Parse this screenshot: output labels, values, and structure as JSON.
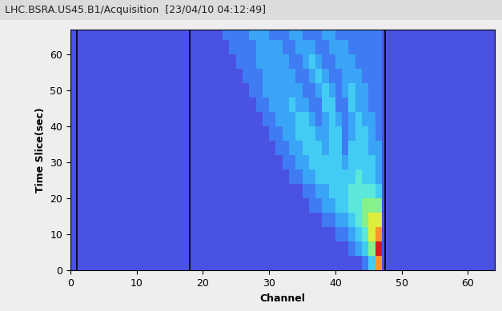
{
  "chart_data": {
    "type": "heatmap",
    "title": "LHC.BSRA.US45.B1/Acquisition  [23/04/10 04:12:49]",
    "x_label": "Channel",
    "y_label": "Time Slice(sec)",
    "xlim": [
      0,
      64
    ],
    "ylim": [
      0,
      67
    ],
    "xticks": [
      0,
      10,
      20,
      30,
      40,
      50,
      60
    ],
    "yticks": [
      0,
      10,
      20,
      30,
      40,
      50,
      60
    ],
    "x_edges": [
      0,
      1,
      2,
      3,
      4,
      5,
      6,
      7,
      8,
      9,
      10,
      11,
      12,
      13,
      14,
      15,
      16,
      17,
      18,
      19,
      20,
      21,
      22,
      23,
      24,
      25,
      26,
      27,
      28,
      29,
      30,
      31,
      32,
      33,
      34,
      35,
      36,
      37,
      38,
      39,
      40,
      41,
      42,
      43,
      44,
      45,
      46,
      47,
      48,
      49,
      50,
      51,
      52,
      53,
      54,
      55,
      56,
      57,
      58,
      59,
      60,
      61,
      62,
      63,
      64
    ],
    "y_edges": [
      0,
      4,
      8,
      12,
      16,
      20,
      24,
      28,
      32,
      36,
      40,
      44,
      48,
      52,
      56,
      60,
      64,
      67
    ],
    "color_range": [
      0,
      9
    ],
    "marker_channels": [
      1,
      18,
      47.5
    ],
    "cells": [
      [
        1,
        1,
        1,
        1,
        1,
        1,
        1,
        1,
        1,
        1,
        1,
        1,
        1,
        1,
        1,
        1,
        1,
        1,
        1,
        1,
        1,
        1,
        1,
        1,
        1,
        1,
        1,
        1,
        1,
        1,
        1,
        1,
        1,
        1,
        1,
        1,
        1,
        1,
        1,
        1,
        1,
        1,
        1,
        1,
        2,
        4,
        8,
        1,
        1,
        1,
        1,
        1,
        1,
        1,
        1,
        1,
        1,
        1,
        1,
        1,
        1,
        1,
        1,
        1
      ],
      [
        1,
        1,
        1,
        1,
        1,
        1,
        1,
        1,
        1,
        1,
        1,
        1,
        1,
        1,
        1,
        1,
        1,
        1,
        1,
        1,
        1,
        1,
        1,
        1,
        1,
        1,
        1,
        1,
        1,
        1,
        1,
        1,
        1,
        1,
        1,
        1,
        1,
        1,
        1,
        1,
        1,
        1,
        2,
        3,
        4,
        6,
        9,
        1,
        1,
        1,
        1,
        1,
        1,
        1,
        1,
        1,
        1,
        1,
        1,
        1,
        1,
        1,
        1,
        1
      ],
      [
        1,
        1,
        1,
        1,
        1,
        1,
        1,
        1,
        1,
        1,
        1,
        1,
        1,
        1,
        1,
        1,
        1,
        1,
        1,
        1,
        1,
        1,
        1,
        1,
        1,
        1,
        1,
        1,
        1,
        1,
        1,
        1,
        1,
        1,
        1,
        1,
        1,
        1,
        1,
        1,
        2,
        2,
        3,
        4,
        5,
        7,
        8,
        1,
        1,
        1,
        1,
        1,
        1,
        1,
        1,
        1,
        1,
        1,
        1,
        1,
        1,
        1,
        1,
        1
      ],
      [
        1,
        1,
        1,
        1,
        1,
        1,
        1,
        1,
        1,
        1,
        1,
        1,
        1,
        1,
        1,
        1,
        1,
        1,
        1,
        1,
        1,
        1,
        1,
        1,
        1,
        1,
        1,
        1,
        1,
        1,
        1,
        1,
        1,
        1,
        1,
        1,
        1,
        1,
        2,
        2,
        3,
        3,
        4,
        5,
        6,
        7,
        7,
        1,
        1,
        1,
        1,
        1,
        1,
        1,
        1,
        1,
        1,
        1,
        1,
        1,
        1,
        1,
        1,
        1
      ],
      [
        1,
        1,
        1,
        1,
        1,
        1,
        1,
        1,
        1,
        1,
        1,
        1,
        1,
        1,
        1,
        1,
        1,
        1,
        1,
        1,
        1,
        1,
        1,
        1,
        1,
        1,
        1,
        1,
        1,
        1,
        1,
        1,
        1,
        1,
        1,
        1,
        2,
        2,
        3,
        3,
        4,
        4,
        5,
        5,
        6,
        6,
        6,
        1,
        1,
        1,
        1,
        1,
        1,
        1,
        1,
        1,
        1,
        1,
        1,
        1,
        1,
        1,
        1,
        1
      ],
      [
        1,
        1,
        1,
        1,
        1,
        1,
        1,
        1,
        1,
        1,
        1,
        1,
        1,
        1,
        1,
        1,
        1,
        1,
        1,
        1,
        1,
        1,
        1,
        1,
        1,
        1,
        1,
        1,
        1,
        1,
        1,
        1,
        1,
        1,
        1,
        2,
        2,
        3,
        3,
        4,
        4,
        4,
        5,
        5,
        5,
        5,
        4,
        1,
        1,
        1,
        1,
        1,
        1,
        1,
        1,
        1,
        1,
        1,
        1,
        1,
        1,
        1,
        1,
        1
      ],
      [
        1,
        1,
        1,
        1,
        1,
        1,
        1,
        1,
        1,
        1,
        1,
        1,
        1,
        1,
        1,
        1,
        1,
        1,
        1,
        1,
        1,
        1,
        1,
        1,
        1,
        1,
        1,
        1,
        1,
        1,
        1,
        1,
        1,
        2,
        2,
        3,
        3,
        4,
        4,
        4,
        4,
        4,
        4,
        5,
        4,
        4,
        3,
        1,
        1,
        1,
        1,
        1,
        1,
        1,
        1,
        1,
        1,
        1,
        1,
        1,
        1,
        1,
        1,
        1
      ],
      [
        1,
        1,
        1,
        1,
        1,
        1,
        1,
        1,
        1,
        1,
        1,
        1,
        1,
        1,
        1,
        1,
        1,
        1,
        1,
        1,
        1,
        1,
        1,
        1,
        1,
        1,
        1,
        1,
        1,
        1,
        1,
        1,
        2,
        2,
        3,
        3,
        4,
        4,
        4,
        4,
        4,
        3,
        4,
        4,
        4,
        4,
        3,
        1,
        1,
        1,
        1,
        1,
        1,
        1,
        1,
        1,
        1,
        1,
        1,
        1,
        1,
        1,
        1,
        1
      ],
      [
        1,
        1,
        1,
        1,
        1,
        1,
        1,
        1,
        1,
        1,
        1,
        1,
        1,
        1,
        1,
        1,
        1,
        1,
        1,
        1,
        1,
        1,
        1,
        1,
        1,
        1,
        1,
        1,
        1,
        1,
        1,
        2,
        2,
        3,
        3,
        4,
        4,
        4,
        3,
        4,
        4,
        2,
        4,
        4,
        4,
        3,
        3,
        1,
        1,
        1,
        1,
        1,
        1,
        1,
        1,
        1,
        1,
        1,
        1,
        1,
        1,
        1,
        1,
        1
      ],
      [
        1,
        1,
        1,
        1,
        1,
        1,
        1,
        1,
        1,
        1,
        1,
        1,
        1,
        1,
        1,
        1,
        1,
        1,
        1,
        1,
        1,
        1,
        1,
        1,
        1,
        1,
        1,
        1,
        1,
        1,
        2,
        2,
        3,
        3,
        4,
        4,
        4,
        3,
        3,
        4,
        4,
        2,
        3,
        4,
        4,
        3,
        2,
        1,
        1,
        1,
        1,
        1,
        1,
        1,
        1,
        1,
        1,
        1,
        1,
        1,
        1,
        1,
        1,
        1
      ],
      [
        1,
        1,
        1,
        1,
        1,
        1,
        1,
        1,
        1,
        1,
        1,
        1,
        1,
        1,
        1,
        1,
        1,
        1,
        1,
        1,
        1,
        1,
        1,
        1,
        1,
        1,
        1,
        1,
        1,
        2,
        2,
        3,
        3,
        3,
        4,
        4,
        3,
        2,
        3,
        4,
        3,
        2,
        3,
        4,
        3,
        3,
        2,
        1,
        1,
        1,
        1,
        1,
        1,
        1,
        1,
        1,
        1,
        1,
        1,
        1,
        1,
        1,
        1,
        1
      ],
      [
        1,
        1,
        1,
        1,
        1,
        1,
        1,
        1,
        1,
        1,
        1,
        1,
        1,
        1,
        1,
        1,
        1,
        1,
        1,
        1,
        1,
        1,
        1,
        1,
        1,
        1,
        1,
        1,
        2,
        2,
        3,
        3,
        3,
        4,
        3,
        3,
        2,
        2,
        4,
        4,
        2,
        2,
        4,
        3,
        3,
        2,
        2,
        1,
        1,
        1,
        1,
        1,
        1,
        1,
        1,
        1,
        1,
        1,
        1,
        1,
        1,
        1,
        1,
        1
      ],
      [
        1,
        1,
        1,
        1,
        1,
        1,
        1,
        1,
        1,
        1,
        1,
        1,
        1,
        1,
        1,
        1,
        1,
        1,
        1,
        1,
        1,
        1,
        1,
        1,
        1,
        1,
        1,
        2,
        2,
        3,
        3,
        3,
        3,
        3,
        3,
        2,
        2,
        3,
        4,
        3,
        2,
        3,
        4,
        3,
        3,
        2,
        2,
        1,
        1,
        1,
        1,
        1,
        1,
        1,
        1,
        1,
        1,
        1,
        1,
        1,
        1,
        1,
        1,
        1
      ],
      [
        1,
        1,
        1,
        1,
        1,
        1,
        1,
        1,
        1,
        1,
        1,
        1,
        1,
        1,
        1,
        1,
        1,
        1,
        1,
        1,
        1,
        1,
        1,
        1,
        1,
        1,
        2,
        2,
        2,
        3,
        3,
        3,
        3,
        3,
        2,
        2,
        3,
        4,
        3,
        2,
        2,
        3,
        3,
        3,
        2,
        2,
        2,
        1,
        1,
        1,
        1,
        1,
        1,
        1,
        1,
        1,
        1,
        1,
        1,
        1,
        1,
        1,
        1,
        1
      ],
      [
        1,
        1,
        1,
        1,
        1,
        1,
        1,
        1,
        1,
        1,
        1,
        1,
        1,
        1,
        1,
        1,
        1,
        1,
        1,
        1,
        1,
        1,
        1,
        1,
        1,
        2,
        2,
        2,
        3,
        3,
        3,
        3,
        3,
        2,
        2,
        3,
        4,
        3,
        2,
        2,
        3,
        3,
        3,
        2,
        2,
        2,
        2,
        1,
        1,
        1,
        1,
        1,
        1,
        1,
        1,
        1,
        1,
        1,
        1,
        1,
        1,
        1,
        1,
        1
      ],
      [
        1,
        1,
        1,
        1,
        1,
        1,
        1,
        1,
        1,
        1,
        1,
        1,
        1,
        1,
        1,
        1,
        1,
        1,
        1,
        1,
        1,
        1,
        1,
        1,
        2,
        2,
        2,
        2,
        3,
        3,
        3,
        3,
        2,
        2,
        3,
        3,
        3,
        2,
        2,
        3,
        3,
        3,
        2,
        2,
        2,
        2,
        2,
        1,
        1,
        1,
        1,
        1,
        1,
        1,
        1,
        1,
        1,
        1,
        1,
        1,
        1,
        1,
        1,
        1
      ],
      [
        1,
        1,
        1,
        1,
        1,
        1,
        1,
        1,
        1,
        1,
        1,
        1,
        1,
        1,
        1,
        1,
        1,
        1,
        1,
        1,
        1,
        1,
        1,
        2,
        2,
        2,
        2,
        3,
        3,
        3,
        2,
        2,
        2,
        3,
        3,
        2,
        2,
        2,
        3,
        3,
        2,
        2,
        2,
        2,
        2,
        2,
        2,
        1,
        1,
        1,
        1,
        1,
        1,
        1,
        1,
        1,
        1,
        1,
        1,
        1,
        1,
        1,
        1,
        1
      ]
    ]
  }
}
